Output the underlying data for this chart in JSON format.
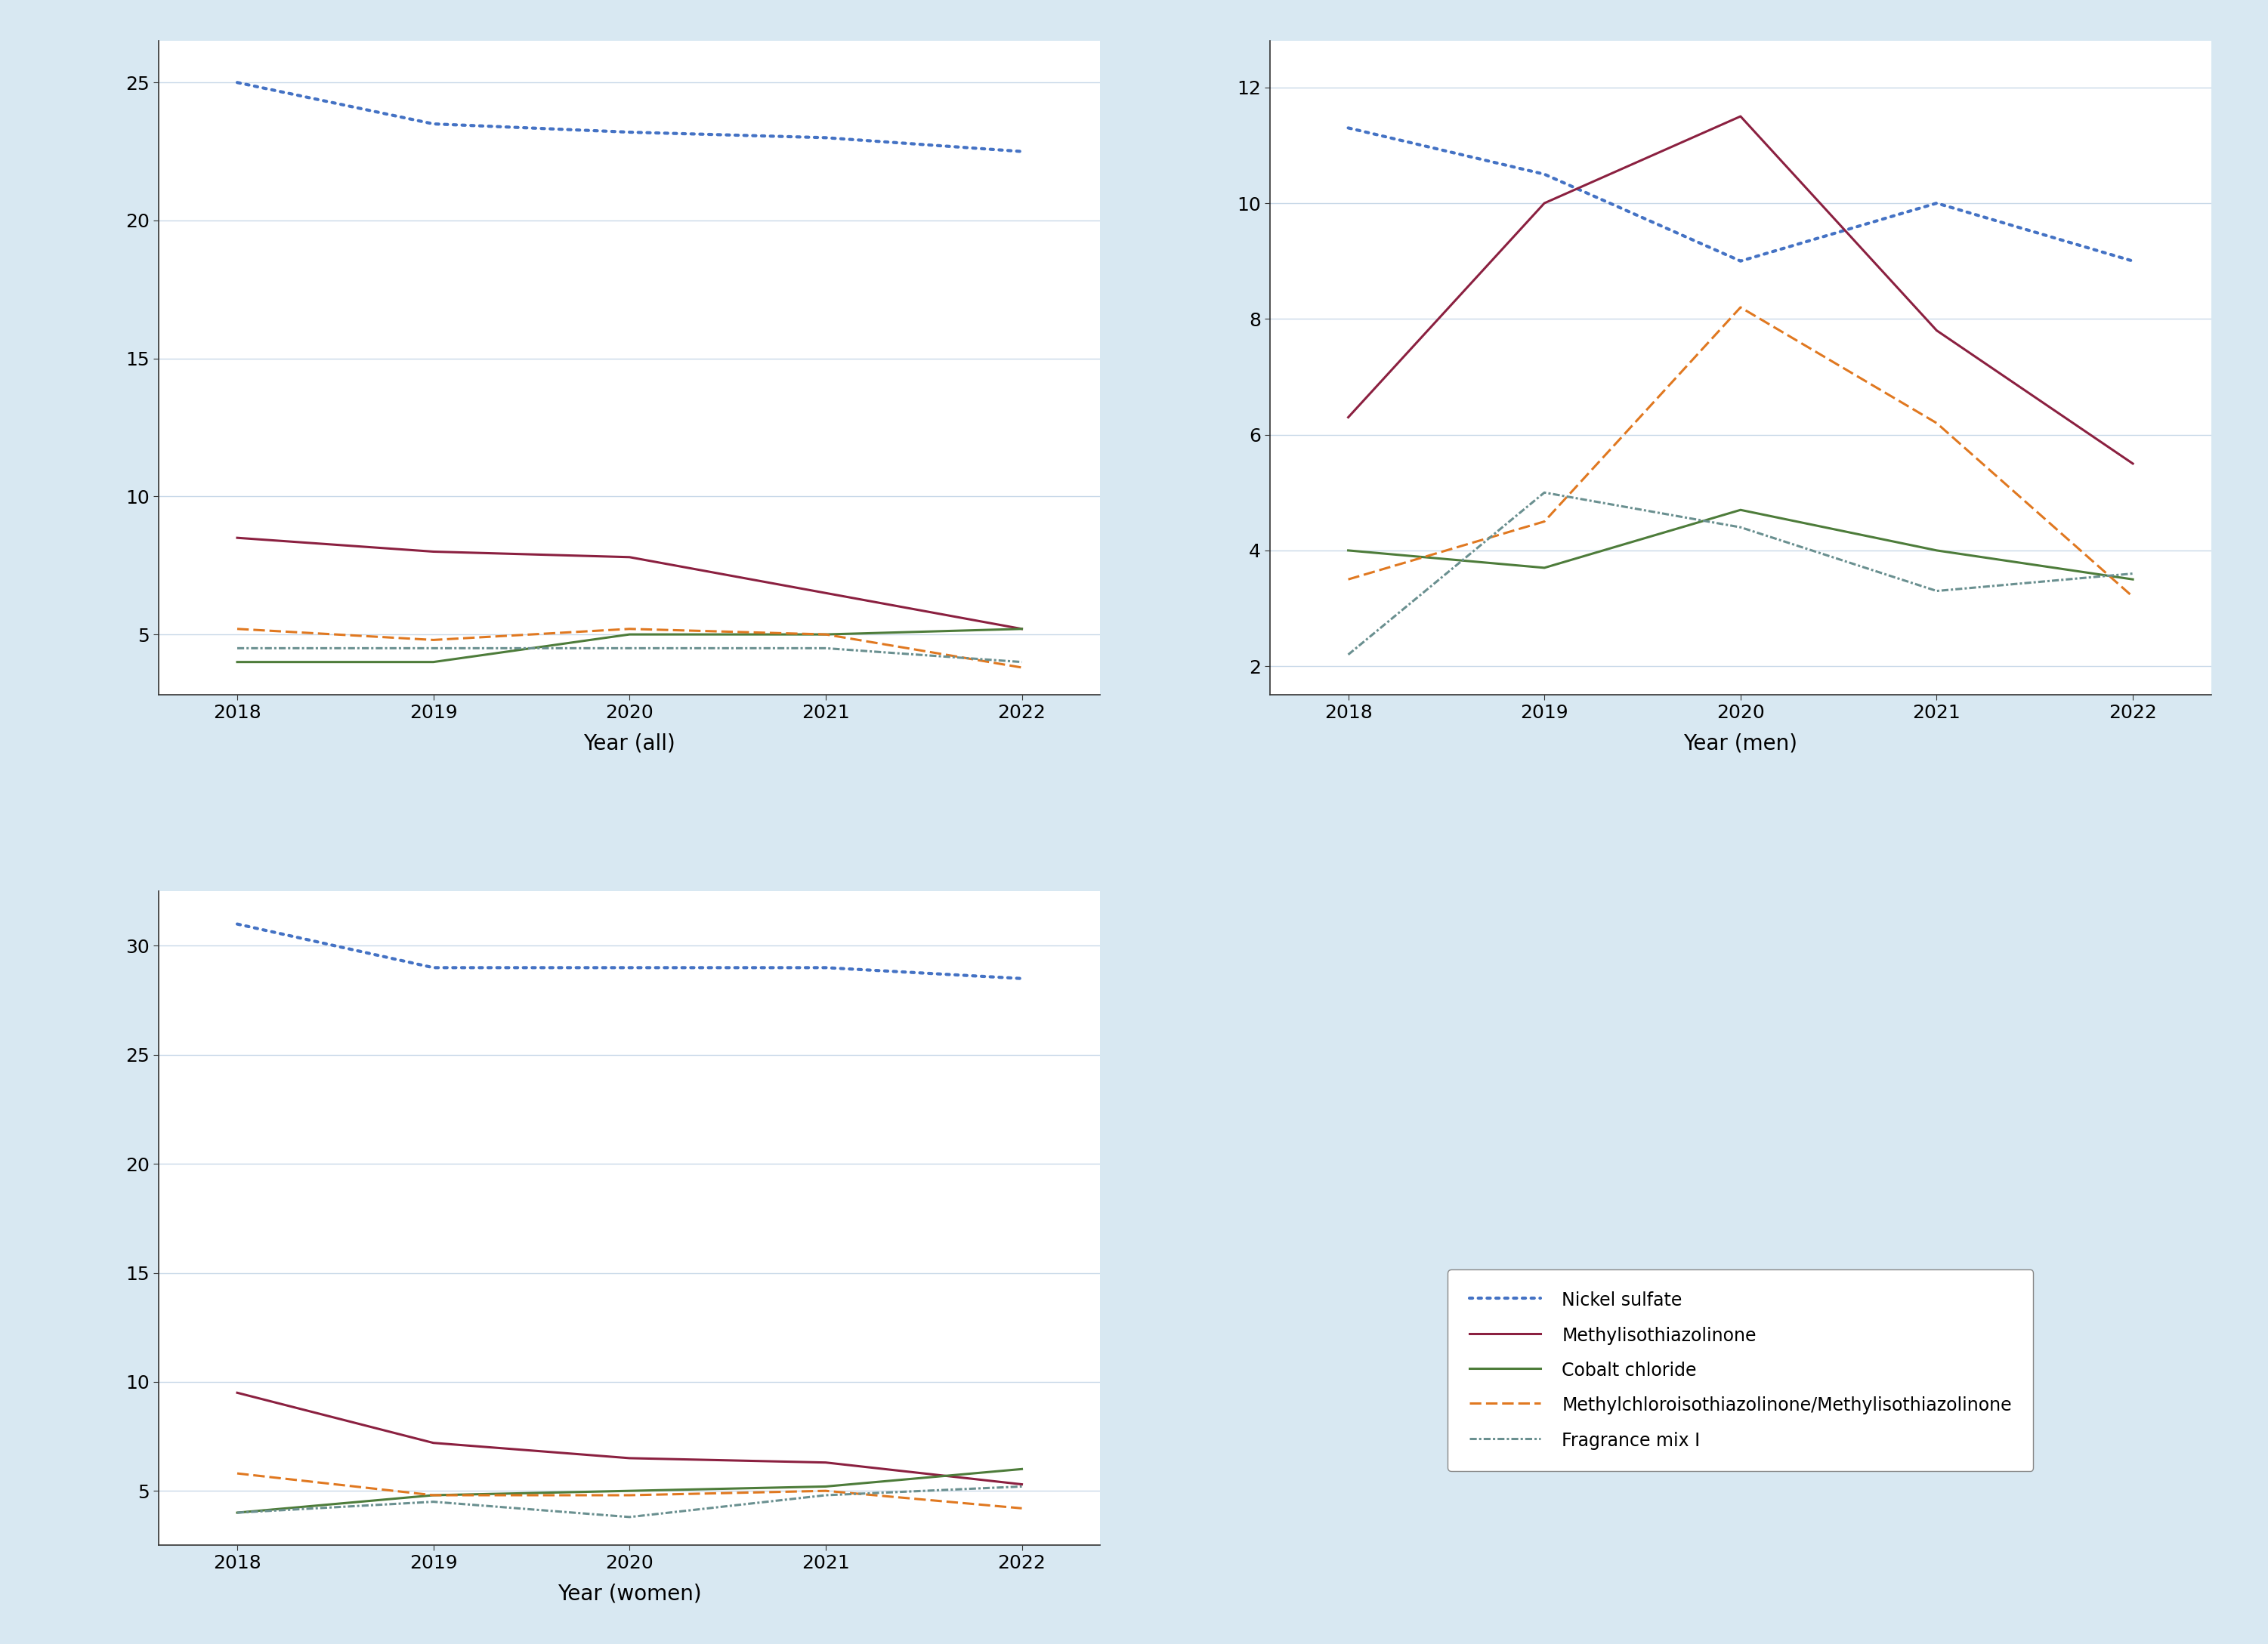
{
  "years": [
    2018,
    2019,
    2020,
    2021,
    2022
  ],
  "all": {
    "nickel_sulfate": [
      25.0,
      23.5,
      23.2,
      23.0,
      22.5
    ],
    "methylisothiazolinone": [
      8.5,
      8.0,
      7.8,
      6.5,
      5.2
    ],
    "cobalt_chloride": [
      4.0,
      4.0,
      5.0,
      5.0,
      5.2
    ],
    "mci_mi": [
      5.2,
      4.8,
      5.2,
      5.0,
      3.8
    ],
    "fragrance_mix_i": [
      4.5,
      4.5,
      4.5,
      4.5,
      4.0
    ],
    "xlabel": "Year (all)",
    "ylim": [
      2.8,
      26.5
    ],
    "yticks": [
      5,
      10,
      15,
      20,
      25
    ]
  },
  "men": {
    "nickel_sulfate": [
      11.3,
      10.5,
      9.0,
      10.0,
      9.0
    ],
    "methylisothiazolinone": [
      6.3,
      10.0,
      11.5,
      7.8,
      5.5
    ],
    "cobalt_chloride": [
      4.0,
      3.7,
      4.7,
      4.0,
      3.5
    ],
    "mci_mi": [
      3.5,
      4.5,
      8.2,
      6.2,
      3.2
    ],
    "fragrance_mix_i": [
      2.2,
      5.0,
      4.4,
      3.3,
      3.6
    ],
    "xlabel": "Year (men)",
    "ylim": [
      1.5,
      12.8
    ],
    "yticks": [
      2,
      4,
      6,
      8,
      10,
      12
    ]
  },
  "women": {
    "nickel_sulfate": [
      31.0,
      29.0,
      29.0,
      29.0,
      28.5
    ],
    "methylisothiazolinone": [
      9.5,
      7.2,
      6.5,
      6.3,
      5.3
    ],
    "cobalt_chloride": [
      4.0,
      4.8,
      5.0,
      5.2,
      6.0
    ],
    "mci_mi": [
      5.8,
      4.8,
      4.8,
      5.0,
      4.2
    ],
    "fragrance_mix_i": [
      4.0,
      4.5,
      3.8,
      4.8,
      5.2
    ],
    "xlabel": "Year (women)",
    "ylim": [
      2.5,
      32.5
    ],
    "yticks": [
      5,
      10,
      15,
      20,
      25,
      30
    ]
  },
  "legend": {
    "nickel_sulfate": "Nickel sulfate",
    "methylisothiazolinone": "Methylisothiazolinone",
    "cobalt_chloride": "Cobalt chloride",
    "mci_mi": "Methylchloroisothiazolinone/Methylisothiazolinone",
    "fragrance_mix_i": "Fragrance mix I"
  },
  "colors": {
    "nickel_sulfate": "#4472C4",
    "methylisothiazolinone": "#8B2040",
    "cobalt_chloride": "#4D7C3A",
    "mci_mi": "#E07820",
    "fragrance_mix_i": "#6A9090"
  },
  "background_color": "#D8E8F2",
  "plot_background": "#FFFFFF",
  "grid_color": "#C8D8E8",
  "spine_color": "#333333",
  "tick_fontsize": 18,
  "label_fontsize": 20,
  "legend_fontsize": 17,
  "line_width": 2.2
}
